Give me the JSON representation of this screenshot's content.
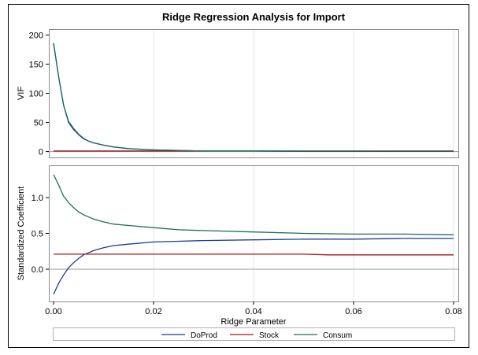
{
  "chart_data": [
    {
      "type": "line",
      "panel": "top",
      "title": "Ridge Regression Analysis for Import",
      "ylabel": "VIF",
      "xlabel": "",
      "xlim": [
        0.0,
        0.08
      ],
      "ylim": [
        -10,
        210
      ],
      "yticks": [
        0,
        50,
        100,
        150,
        200
      ],
      "ytick_labels": [
        "0",
        "50",
        "100",
        "150",
        "200"
      ],
      "grid": "vertical",
      "reference_line": 0,
      "series": [
        {
          "name": "DoProd",
          "color": "#1f3a93",
          "x": [
            0,
            0.001,
            0.002,
            0.003,
            0.004,
            0.005,
            0.006,
            0.007,
            0.008,
            0.01,
            0.012,
            0.015,
            0.02,
            0.025,
            0.03,
            0.04,
            0.05,
            0.06,
            0.07,
            0.08
          ],
          "y": [
            186,
            130,
            80,
            50,
            38,
            29,
            22,
            18,
            15,
            11,
            8,
            5,
            3,
            2,
            1,
            1,
            0.5,
            0.5,
            0.3,
            0.3
          ]
        },
        {
          "name": "Stock",
          "color": "#a01818",
          "x": [
            0,
            0.02,
            0.04,
            0.06,
            0.08
          ],
          "y": [
            1,
            1,
            1,
            1,
            1
          ]
        },
        {
          "name": "Consum",
          "color": "#1a6e5e",
          "x": [
            0,
            0.001,
            0.002,
            0.003,
            0.004,
            0.005,
            0.006,
            0.007,
            0.008,
            0.01,
            0.012,
            0.015,
            0.02,
            0.025,
            0.03,
            0.04,
            0.05,
            0.06,
            0.07,
            0.08
          ],
          "y": [
            186,
            130,
            80,
            52,
            40,
            30,
            23,
            18,
            15,
            11,
            8,
            5,
            3,
            2,
            1,
            1,
            0.5,
            0.5,
            0.3,
            0.3
          ]
        }
      ]
    },
    {
      "type": "line",
      "panel": "bottom",
      "title": "",
      "ylabel": "Standardized Coefficient",
      "xlabel": "Ridge Parameter",
      "xlim": [
        0.0,
        0.08
      ],
      "xticks": [
        0.0,
        0.02,
        0.04,
        0.06,
        0.08
      ],
      "xtick_labels": [
        "0.00",
        "0.02",
        "0.04",
        "0.06",
        "0.08"
      ],
      "ylim": [
        -0.45,
        1.45
      ],
      "yticks": [
        0.0,
        0.5,
        1.0
      ],
      "ytick_labels": [
        "0.0",
        "0.5",
        "1.0"
      ],
      "grid": "vertical",
      "reference_line": 0,
      "legend": "bottom",
      "series": [
        {
          "name": "DoProd",
          "color": "#1f3a93",
          "x": [
            0,
            0.001,
            0.002,
            0.003,
            0.004,
            0.005,
            0.006,
            0.008,
            0.01,
            0.012,
            0.015,
            0.02,
            0.025,
            0.03,
            0.04,
            0.05,
            0.06,
            0.07,
            0.08
          ],
          "y": [
            -0.35,
            -0.2,
            -0.08,
            0.02,
            0.09,
            0.15,
            0.2,
            0.26,
            0.3,
            0.33,
            0.35,
            0.38,
            0.39,
            0.4,
            0.41,
            0.42,
            0.42,
            0.43,
            0.43
          ]
        },
        {
          "name": "Stock",
          "color": "#a01818",
          "x": [
            0,
            0.02,
            0.04,
            0.05,
            0.055,
            0.06,
            0.07,
            0.08
          ],
          "y": [
            0.21,
            0.21,
            0.21,
            0.21,
            0.2,
            0.2,
            0.2,
            0.2
          ]
        },
        {
          "name": "Consum",
          "color": "#1a6e5e",
          "x": [
            0,
            0.001,
            0.002,
            0.003,
            0.004,
            0.005,
            0.006,
            0.008,
            0.01,
            0.012,
            0.015,
            0.02,
            0.025,
            0.03,
            0.04,
            0.05,
            0.06,
            0.07,
            0.08
          ],
          "y": [
            1.32,
            1.18,
            1.02,
            0.93,
            0.86,
            0.8,
            0.76,
            0.7,
            0.66,
            0.63,
            0.61,
            0.58,
            0.55,
            0.54,
            0.52,
            0.5,
            0.49,
            0.49,
            0.48
          ]
        }
      ]
    }
  ]
}
